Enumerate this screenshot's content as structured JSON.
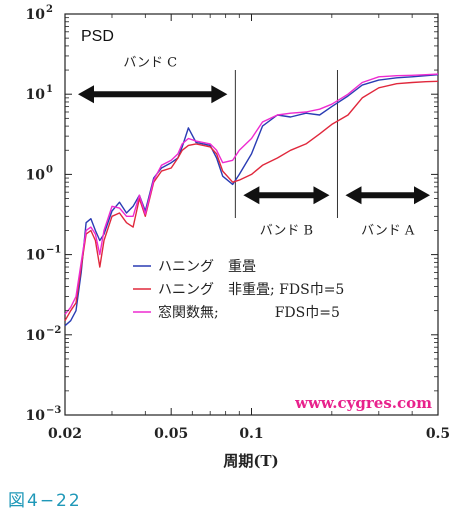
{
  "figure_label": "図4−22",
  "chart_data": {
    "type": "line",
    "title": "PSD",
    "xlabel": "周期(T)",
    "ylabel": "",
    "x_scale": "log",
    "y_scale": "log",
    "xlim": [
      0.02,
      0.5
    ],
    "ylim": [
      0.001,
      100
    ],
    "x_ticks": [
      {
        "value": 0.02,
        "label": "0.02"
      },
      {
        "value": 0.05,
        "label": "0.05"
      },
      {
        "value": 0.1,
        "label": "0.1"
      },
      {
        "value": 0.5,
        "label": "0.5"
      }
    ],
    "y_ticks": [
      {
        "value": 0.001,
        "base": "10",
        "exp": "−3"
      },
      {
        "value": 0.01,
        "base": "10",
        "exp": "−2"
      },
      {
        "value": 0.1,
        "base": "10",
        "exp": "−1"
      },
      {
        "value": 1,
        "base": "10",
        "exp": "0"
      },
      {
        "value": 10,
        "base": "10",
        "exp": "1"
      },
      {
        "value": 100,
        "base": "10",
        "exp": "2"
      }
    ],
    "grid": false,
    "legend_position": "center",
    "series": [
      {
        "name": "ハニング　重畳",
        "color": "#2a3cb4",
        "x": [
          0.02,
          0.021,
          0.022,
          0.023,
          0.024,
          0.025,
          0.026,
          0.027,
          0.028,
          0.03,
          0.032,
          0.034,
          0.036,
          0.038,
          0.04,
          0.043,
          0.046,
          0.05,
          0.053,
          0.055,
          0.058,
          0.062,
          0.066,
          0.07,
          0.074,
          0.078,
          0.085,
          0.09,
          0.1,
          0.11,
          0.125,
          0.14,
          0.16,
          0.18,
          0.2,
          0.23,
          0.26,
          0.3,
          0.35,
          0.4,
          0.45,
          0.5
        ],
        "values": [
          0.013,
          0.015,
          0.02,
          0.06,
          0.25,
          0.28,
          0.2,
          0.15,
          0.18,
          0.35,
          0.45,
          0.33,
          0.4,
          0.55,
          0.35,
          0.9,
          1.2,
          1.4,
          1.6,
          2.2,
          3.8,
          2.5,
          2.4,
          2.3,
          1.6,
          0.95,
          0.75,
          1.0,
          1.8,
          4.0,
          5.5,
          5.2,
          5.8,
          5.5,
          7.0,
          9.5,
          13.0,
          15.0,
          16.0,
          16.5,
          17.0,
          17.5
        ]
      },
      {
        "name": "ハニング　非重畳; FDS巾=5",
        "color": "#e0283c",
        "x": [
          0.02,
          0.021,
          0.022,
          0.023,
          0.024,
          0.025,
          0.026,
          0.027,
          0.028,
          0.03,
          0.032,
          0.034,
          0.036,
          0.038,
          0.04,
          0.043,
          0.046,
          0.05,
          0.053,
          0.055,
          0.058,
          0.062,
          0.066,
          0.07,
          0.074,
          0.078,
          0.085,
          0.09,
          0.1,
          0.11,
          0.125,
          0.14,
          0.16,
          0.18,
          0.2,
          0.23,
          0.26,
          0.3,
          0.35,
          0.4,
          0.45,
          0.5
        ],
        "values": [
          0.015,
          0.02,
          0.025,
          0.07,
          0.18,
          0.2,
          0.15,
          0.07,
          0.15,
          0.3,
          0.33,
          0.25,
          0.22,
          0.5,
          0.3,
          0.8,
          1.1,
          1.2,
          1.6,
          2.0,
          2.3,
          2.4,
          2.3,
          2.2,
          1.8,
          1.1,
          0.8,
          0.85,
          1.0,
          1.3,
          1.6,
          2.0,
          2.4,
          3.2,
          4.2,
          5.5,
          9.0,
          12.0,
          13.5,
          14.0,
          14.3,
          14.5
        ]
      },
      {
        "name": "窓関数無;　　　　FDS巾=5",
        "color": "#ee2bd0",
        "x": [
          0.02,
          0.021,
          0.022,
          0.023,
          0.024,
          0.025,
          0.026,
          0.027,
          0.028,
          0.03,
          0.032,
          0.034,
          0.036,
          0.038,
          0.04,
          0.043,
          0.046,
          0.05,
          0.053,
          0.055,
          0.058,
          0.062,
          0.066,
          0.07,
          0.074,
          0.078,
          0.085,
          0.09,
          0.1,
          0.11,
          0.125,
          0.14,
          0.16,
          0.18,
          0.2,
          0.23,
          0.26,
          0.3,
          0.35,
          0.4,
          0.45,
          0.5
        ],
        "values": [
          0.018,
          0.022,
          0.03,
          0.08,
          0.2,
          0.22,
          0.18,
          0.1,
          0.2,
          0.4,
          0.38,
          0.3,
          0.3,
          0.55,
          0.32,
          0.85,
          1.3,
          1.5,
          1.8,
          2.4,
          2.8,
          2.6,
          2.5,
          2.4,
          2.0,
          1.4,
          1.5,
          2.0,
          2.8,
          4.5,
          5.5,
          5.8,
          6.0,
          6.5,
          7.5,
          10.0,
          14.0,
          16.5,
          17.0,
          17.2,
          17.5,
          17.8
        ]
      }
    ],
    "band_dividers": [
      0.087,
      0.21
    ],
    "bands": [
      {
        "label": "バンド C",
        "from": 0.02,
        "to": 0.087,
        "y": 10,
        "label_y": 25,
        "arrow_inset_start": 0.0,
        "arrow_inset_end": 0.01
      },
      {
        "label": "バンド B",
        "from": 0.087,
        "to": 0.21,
        "y": 0.55,
        "label_y": 0.2,
        "arrow_inset_start": 0.005,
        "arrow_inset_end": 0.01
      },
      {
        "label": "バンド A",
        "from": 0.21,
        "to": 0.5,
        "y": 0.55,
        "label_y": 0.2,
        "arrow_inset_start": 0.01,
        "arrow_inset_end": 0.0
      }
    ],
    "annotation_url": "www.cygres.com",
    "annotation_url_color": "#e8218c"
  }
}
